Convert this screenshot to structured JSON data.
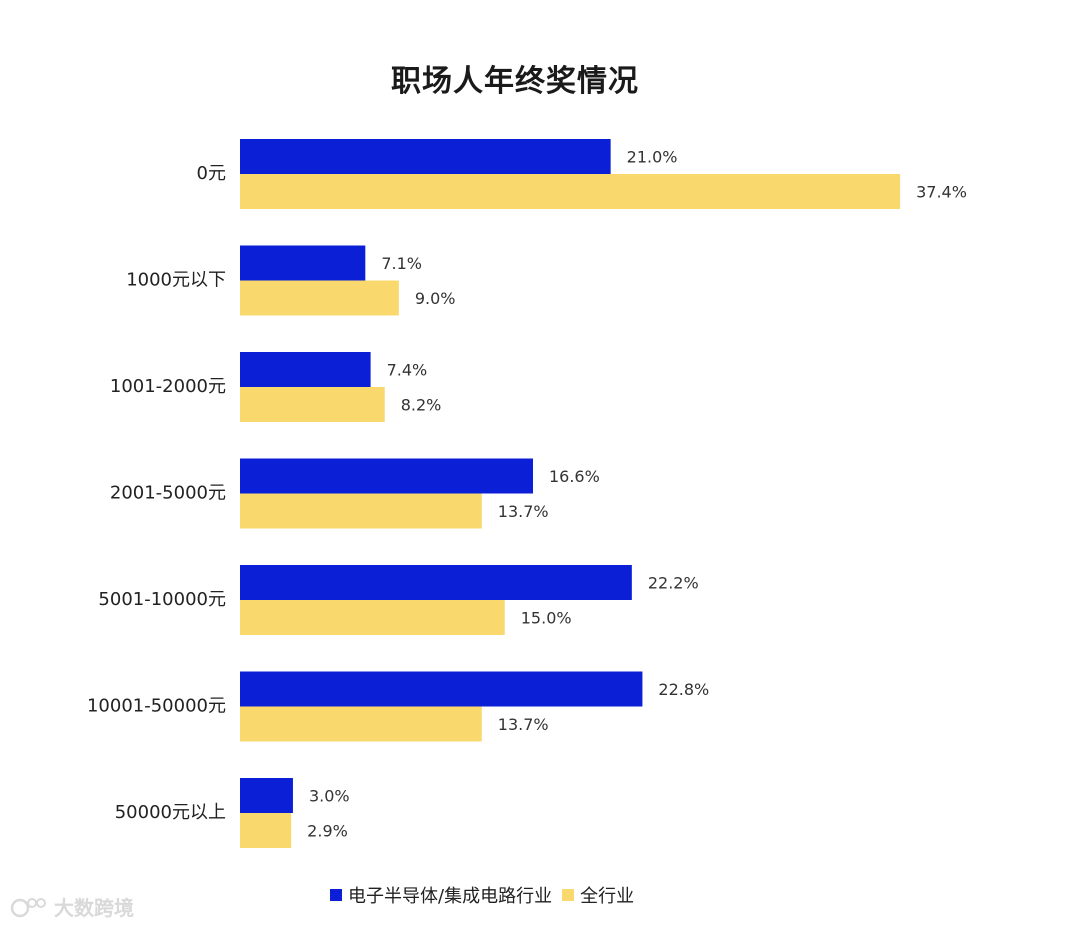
{
  "title": "职场人年终奖情况",
  "colors": {
    "series1": "#0a1fd6",
    "series2": "#f9d86d",
    "label": "#333333",
    "category_label": "#222222"
  },
  "legend": {
    "series1": "电子半导体/集成电路行业",
    "series2": "全行业"
  },
  "watermark": {
    "text": "大数跨境"
  },
  "chart_data": {
    "type": "bar",
    "orientation": "horizontal",
    "categories": [
      "0元",
      "1000元以下",
      "1001-2000元",
      "2001-5000元",
      "5001-10000元",
      "10001-50000元",
      "50000元以上"
    ],
    "series": [
      {
        "name": "电子半导体/集成电路行业",
        "values": [
          21.0,
          7.1,
          7.4,
          16.6,
          22.2,
          22.8,
          3.0
        ],
        "labels": [
          "21.0%",
          "7.1%",
          "7.4%",
          "16.6%",
          "22.2%",
          "22.8%",
          "3.0%"
        ]
      },
      {
        "name": "全行业",
        "values": [
          37.4,
          9.0,
          8.2,
          13.7,
          15.0,
          13.7,
          2.9
        ],
        "labels": [
          "37.4%",
          "9.0%",
          "8.2%",
          "13.7%",
          "15.0%",
          "13.7%",
          "2.9%"
        ]
      }
    ],
    "legend_position": "bottom",
    "grid": false
  }
}
